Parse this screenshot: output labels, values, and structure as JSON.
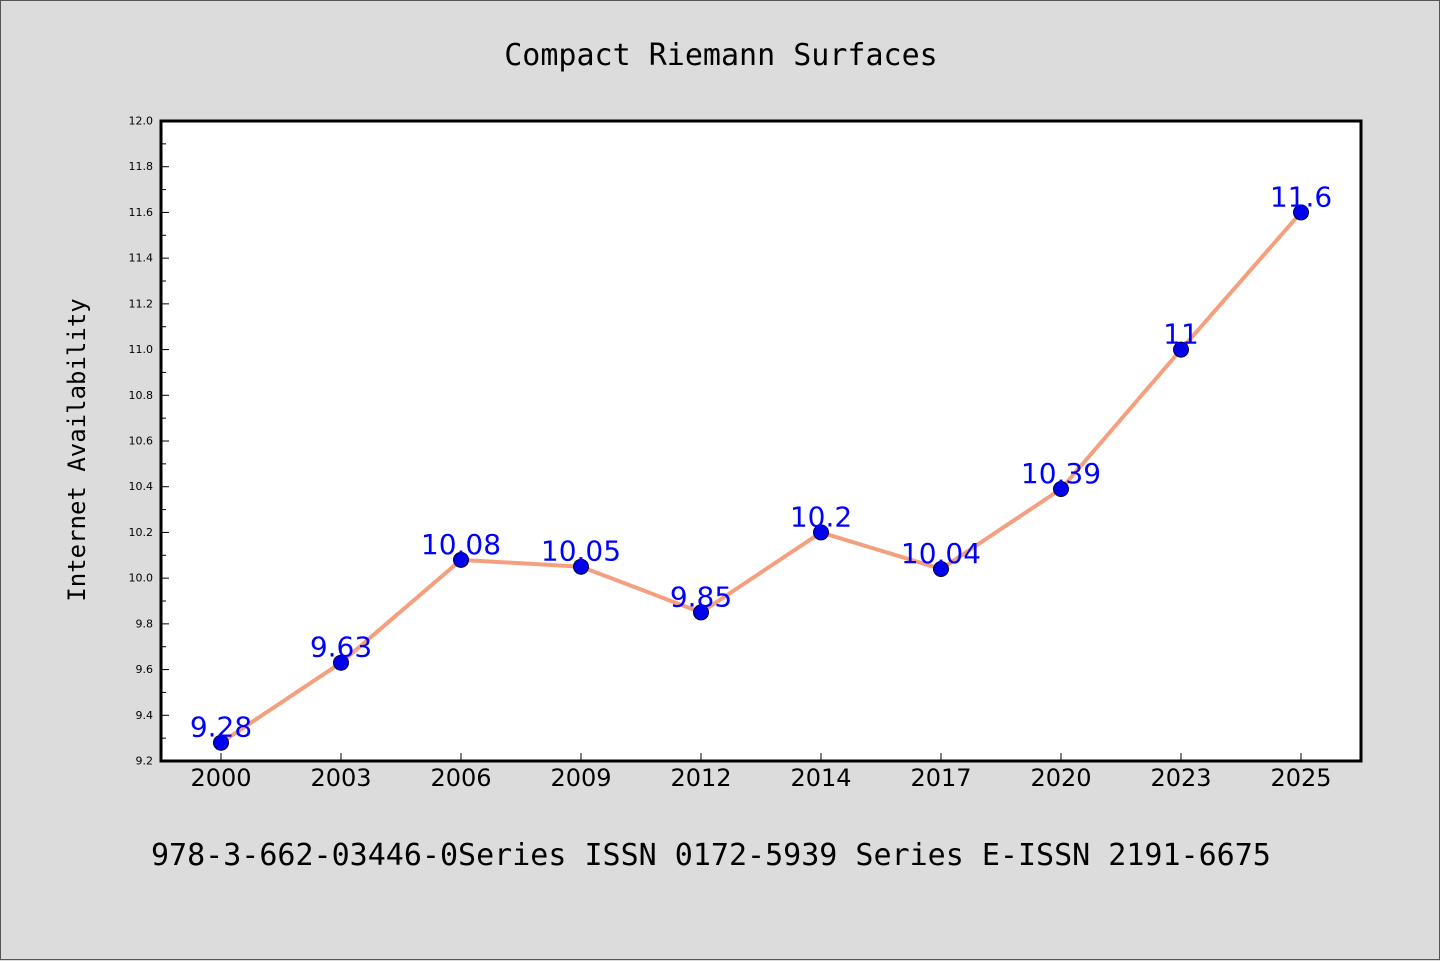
{
  "chart_data": {
    "type": "line",
    "title": "Compact Riemann Surfaces",
    "ylabel": "Internet Availability",
    "xlabel": "",
    "categories": [
      "2000",
      "2003",
      "2006",
      "2009",
      "2012",
      "2014",
      "2017",
      "2020",
      "2023",
      "2025"
    ],
    "series": [
      {
        "values": [
          9.28,
          9.63,
          10.08,
          10.05,
          9.85,
          10.2,
          10.04,
          10.39,
          11,
          11.6
        ],
        "data_labels": [
          "9.28",
          "9.63",
          "10.08",
          "10.05",
          "9.85",
          "10.2",
          "10.04",
          "10.39",
          "11",
          "11.6"
        ],
        "line_color": "#f4a07f",
        "marker_color": "#0000ee",
        "label_color": "#0000ff"
      }
    ],
    "ylim": [
      9.2,
      12.0
    ],
    "yticks": [
      "9.2",
      "9.4",
      "9.6",
      "9.8",
      "10.0",
      "10.2",
      "10.4",
      "10.6",
      "10.8",
      "11.0",
      "11.2",
      "11.4",
      "11.6",
      "11.8",
      "12.0"
    ],
    "grid": false,
    "legend": "none"
  },
  "footer_text": "978-3-662-03446-0Series ISSN 0172-5939 Series E-ISSN 2191-6675",
  "colors": {
    "background": "#dcdcdc",
    "plot_background": "#ffffff",
    "axis": "#000000"
  }
}
